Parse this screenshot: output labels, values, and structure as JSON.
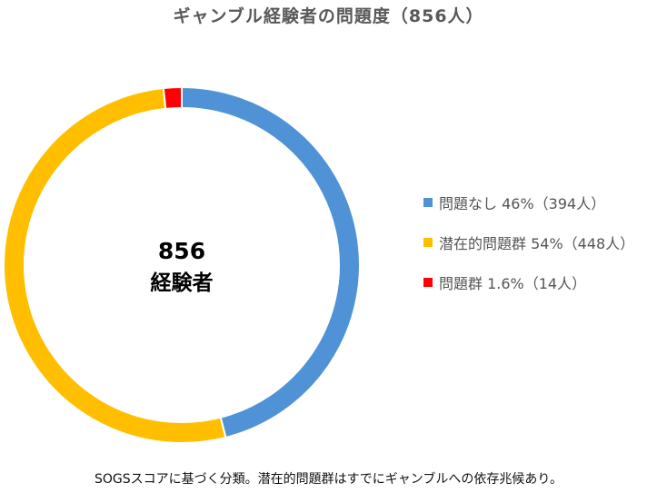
{
  "chart_data": {
    "type": "pie",
    "title": "ギャンブル経験者の問題度（856人）",
    "center_value": "856",
    "center_label": "経験者",
    "categories": [
      "問題なし",
      "潜在的問題群",
      "問題群"
    ],
    "values": [
      394,
      448,
      14
    ],
    "percents": [
      "46%",
      "54%",
      "1.6%"
    ],
    "legend": [
      {
        "label": "問題なし 46%（394人）",
        "color": "#4F93D6"
      },
      {
        "label": "潜在的問題群 54%（448人）",
        "color": "#FFBF00"
      },
      {
        "label": "問題群 1.6%（14人）",
        "color": "#FF0000"
      }
    ],
    "colors": [
      "#4F93D6",
      "#FFBF00",
      "#FF0000"
    ],
    "legend_position": "right",
    "footnote": "SOGSスコアに基づく分類。潜在的問題群はすでにギャンブルへの依存兆候あり。"
  }
}
